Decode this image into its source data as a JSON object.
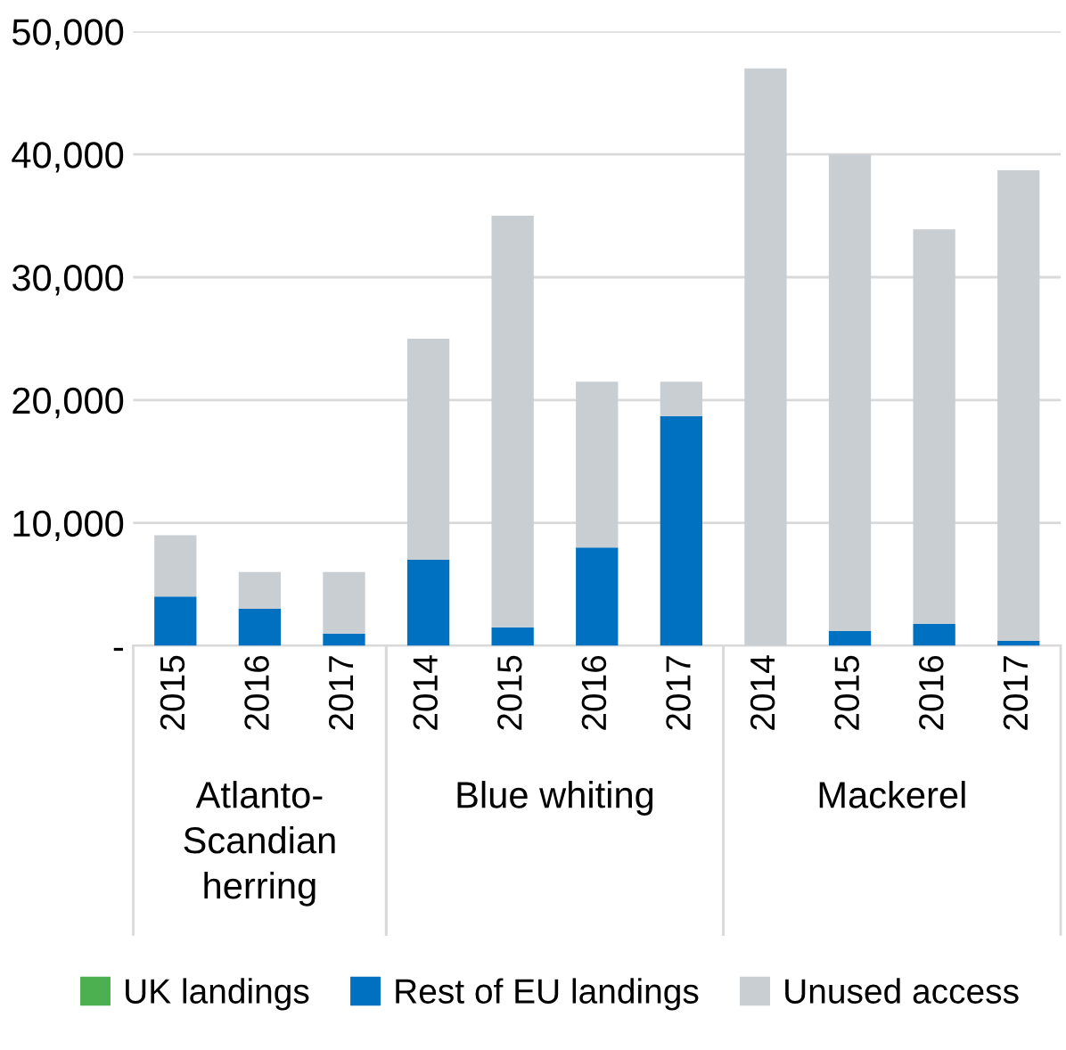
{
  "chart_data": {
    "type": "bar",
    "stacked": true,
    "categories": [
      "2015",
      "2016",
      "2017",
      "2014",
      "2015",
      "2016",
      "2017",
      "2014",
      "2015",
      "2016",
      "2017"
    ],
    "series": [
      {
        "name": "UK landings",
        "color": "#4caf50",
        "values": [
          0,
          0,
          0,
          0,
          0,
          0,
          0,
          0,
          0,
          0,
          0
        ]
      },
      {
        "name": "Rest of EU landings",
        "color": "#0070c0",
        "values": [
          4000,
          3000,
          1000,
          7000,
          1500,
          8000,
          18700,
          0,
          1200,
          1800,
          400
        ]
      },
      {
        "name": "Unused access",
        "color": "#c8ced2",
        "values": [
          5000,
          3000,
          5000,
          18000,
          33500,
          13500,
          2800,
          47000,
          38800,
          32100,
          38300
        ]
      }
    ],
    "annotations": [
      "Atlanto-\nScandian\nherring",
      "Blue whiting",
      "Mackerel"
    ],
    "ylim": [
      0,
      50000
    ],
    "yticks": [
      {
        "value": 0,
        "label": "-"
      },
      {
        "value": 10000,
        "label": "10,000"
      },
      {
        "value": 20000,
        "label": "20,000"
      },
      {
        "value": 30000,
        "label": "30,000"
      },
      {
        "value": 40000,
        "label": "40,000"
      },
      {
        "value": 50000,
        "label": "50,000"
      }
    ],
    "grid": "y",
    "legend": "bottom"
  }
}
